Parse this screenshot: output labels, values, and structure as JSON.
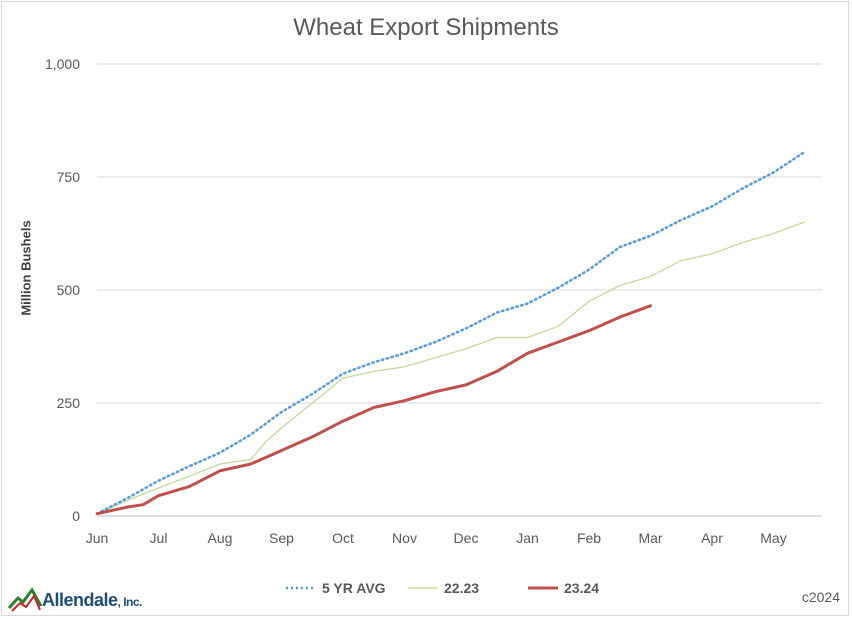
{
  "chart_data": {
    "type": "line",
    "title": "Wheat Export Shipments",
    "ylabel": "Million Bushels",
    "xlabel": "",
    "ylim": [
      0,
      1000
    ],
    "y_ticks": [
      0,
      250,
      500,
      750,
      1000
    ],
    "y_tick_labels": [
      "0",
      "250",
      "500",
      "750",
      "1,000"
    ],
    "x_categories": [
      "Jun",
      "Jul",
      "Aug",
      "Sep",
      "Oct",
      "Nov",
      "Dec",
      "Jan",
      "Feb",
      "Mar",
      "Apr",
      "May"
    ],
    "grid": true,
    "legend_position": "bottom",
    "series": [
      {
        "name": "5 YR AVG",
        "color": "#5b9bd5",
        "style": "dotted",
        "points": [
          [
            0,
            5
          ],
          [
            0.5,
            40
          ],
          [
            1,
            78
          ],
          [
            1.5,
            110
          ],
          [
            2,
            140
          ],
          [
            2.5,
            180
          ],
          [
            3,
            230
          ],
          [
            3.5,
            270
          ],
          [
            4,
            315
          ],
          [
            4.5,
            340
          ],
          [
            5,
            360
          ],
          [
            5.5,
            385
          ],
          [
            6,
            415
          ],
          [
            6.5,
            450
          ],
          [
            7,
            470
          ],
          [
            7.5,
            505
          ],
          [
            8,
            545
          ],
          [
            8.5,
            595
          ],
          [
            9,
            620
          ],
          [
            9.5,
            655
          ],
          [
            10,
            685
          ],
          [
            10.5,
            725
          ],
          [
            11,
            760
          ],
          [
            11.5,
            805
          ]
        ]
      },
      {
        "name": "22.23",
        "color": "#c5d89c",
        "style": "thin",
        "points": [
          [
            0,
            5
          ],
          [
            0.5,
            35
          ],
          [
            1,
            62
          ],
          [
            1.5,
            88
          ],
          [
            2,
            115
          ],
          [
            2.5,
            125
          ],
          [
            2.75,
            165
          ],
          [
            3,
            195
          ],
          [
            3.5,
            250
          ],
          [
            4,
            305
          ],
          [
            4.5,
            320
          ],
          [
            5,
            330
          ],
          [
            5.5,
            350
          ],
          [
            6,
            370
          ],
          [
            6.5,
            395
          ],
          [
            7,
            395
          ],
          [
            7.5,
            420
          ],
          [
            8,
            475
          ],
          [
            8.5,
            510
          ],
          [
            9,
            530
          ],
          [
            9.5,
            565
          ],
          [
            10,
            580
          ],
          [
            10.5,
            605
          ],
          [
            11,
            625
          ],
          [
            11.5,
            650
          ]
        ]
      },
      {
        "name": "23.24",
        "color": "#c0504d",
        "style": "thick",
        "points": [
          [
            0,
            5
          ],
          [
            0.5,
            20
          ],
          [
            0.75,
            25
          ],
          [
            1,
            45
          ],
          [
            1.5,
            65
          ],
          [
            2,
            100
          ],
          [
            2.5,
            115
          ],
          [
            3,
            145
          ],
          [
            3.5,
            175
          ],
          [
            4,
            210
          ],
          [
            4.5,
            240
          ],
          [
            5,
            255
          ],
          [
            5.5,
            275
          ],
          [
            6,
            290
          ],
          [
            6.5,
            320
          ],
          [
            7,
            360
          ],
          [
            7.5,
            385
          ],
          [
            8,
            410
          ],
          [
            8.5,
            440
          ],
          [
            9,
            465
          ]
        ]
      }
    ]
  },
  "copyright": "c2024",
  "logo": {
    "name": "Allendale",
    "suffix": ", Inc."
  }
}
